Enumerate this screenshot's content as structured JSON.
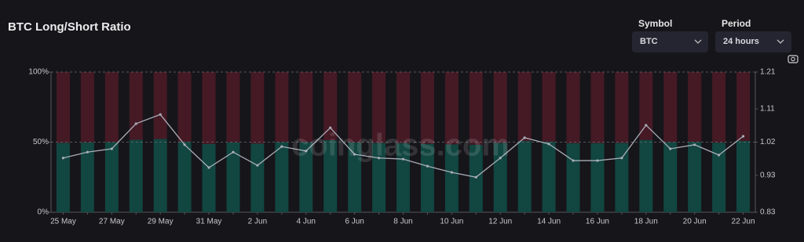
{
  "header": {
    "title": "BTC Long/Short Ratio",
    "symbol_label": "Symbol",
    "symbol": "BTC",
    "period_label": "Period",
    "period": "24 hours"
  },
  "watermark": "coinglass.com",
  "chart_data": {
    "type": "bar",
    "stacked": true,
    "grid": true,
    "categories": [
      "25 May",
      null,
      "27 May",
      null,
      "29 May",
      null,
      "31 May",
      null,
      "2 Jun",
      null,
      "4 Jun",
      null,
      "6 Jun",
      null,
      "8 Jun",
      null,
      "10 Jun",
      null,
      "12 Jun",
      null,
      "14 Jun",
      null,
      "16 Jun",
      null,
      "18 Jun",
      null,
      "20 Jun",
      null,
      "22 Jun"
    ],
    "series": [
      {
        "type": "bar",
        "color": "#124640",
        "values": [
          49.4,
          49.8,
          50.0,
          51.7,
          52.3,
          50.3,
          48.7,
          49.8,
          48.9,
          50.2,
          49.9,
          51.4,
          49.7,
          49.4,
          49.3,
          48.8,
          48.4,
          48.1,
          49.4,
          50.8,
          50.4,
          49.2,
          49.2,
          49.4,
          51.6,
          50.0,
          50.3,
          49.6,
          50.9
        ]
      },
      {
        "type": "bar",
        "color": "#451a25",
        "values": [
          50.6,
          50.2,
          50.0,
          48.3,
          47.7,
          49.7,
          51.3,
          50.2,
          51.1,
          49.8,
          50.1,
          48.6,
          50.3,
          50.6,
          50.7,
          51.2,
          51.6,
          51.9,
          50.6,
          49.2,
          49.6,
          50.8,
          50.8,
          50.6,
          48.4,
          50.0,
          49.7,
          50.4,
          49.1
        ]
      },
      {
        "type": "line",
        "axis": "y2",
        "color": "#a9adb8",
        "values": [
          0.977,
          0.993,
          1.002,
          1.07,
          1.095,
          1.013,
          0.951,
          0.993,
          0.957,
          1.008,
          0.996,
          1.059,
          0.987,
          0.977,
          0.974,
          0.955,
          0.938,
          0.925,
          0.977,
          1.032,
          1.015,
          0.97,
          0.97,
          0.977,
          1.066,
          1.002,
          1.013,
          0.985,
          1.036
        ]
      }
    ],
    "ylim": [
      0,
      100
    ],
    "yticks": [
      {
        "value": 0,
        "label": "0%"
      },
      {
        "value": 50,
        "label": "50%"
      },
      {
        "value": 100,
        "label": "100%"
      }
    ],
    "y2lim": [
      0.83,
      1.21
    ],
    "y2ticks": [
      0.83,
      0.93,
      1.02,
      1.11,
      1.21
    ]
  }
}
